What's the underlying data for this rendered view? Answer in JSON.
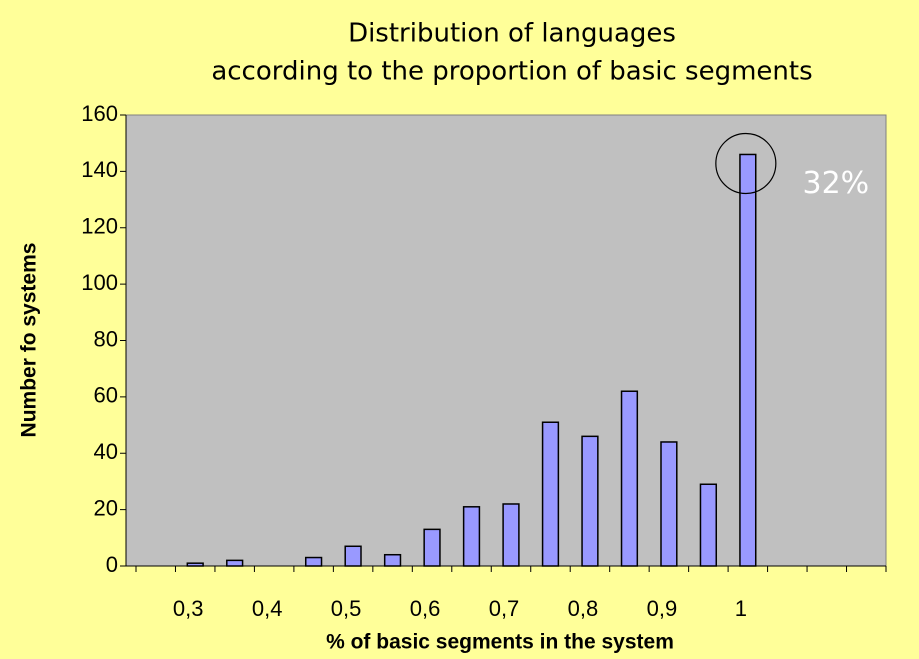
{
  "chart_data": {
    "type": "bar",
    "title": [
      "Distribution of languages",
      "according to the proportion of basic segments"
    ],
    "x_label": "% of basic segments in the system",
    "y_label": "Number fo systems",
    "categories": [
      null,
      "0,3",
      null,
      "0,4",
      null,
      "0,5",
      null,
      "0,6",
      null,
      "0,7",
      null,
      "0,8",
      null,
      "0,9",
      null,
      "1",
      null,
      null,
      null
    ],
    "values": [
      null,
      1,
      2,
      null,
      3,
      7,
      4,
      13,
      21,
      22,
      51,
      46,
      62,
      44,
      29,
      146,
      null,
      null,
      null
    ],
    "color": "#9999ff",
    "ylim": [
      0,
      160
    ],
    "yticks": [
      0,
      20,
      40,
      60,
      80,
      100,
      120,
      140,
      160
    ],
    "grid": false,
    "annotation": "32%"
  }
}
